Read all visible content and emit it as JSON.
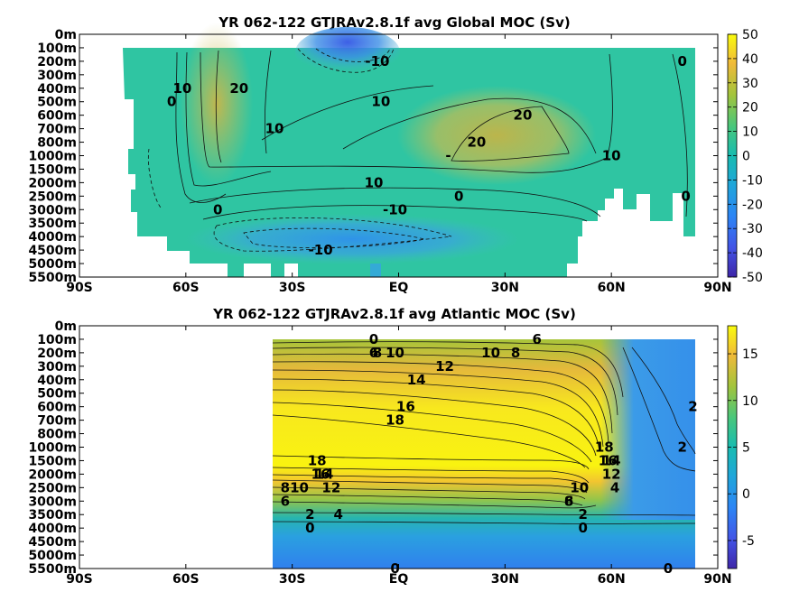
{
  "chart_data": [
    {
      "type": "heatmap",
      "title": "YR 062-122 GTJRAv2.8.1f avg  Global MOC (Sv)",
      "x_ticks": [
        "90S",
        "60S",
        "30S",
        "EQ",
        "30N",
        "60N",
        "90N"
      ],
      "x_range": [
        -90,
        90
      ],
      "y_ticks": [
        "0m",
        "100m",
        "200m",
        "300m",
        "400m",
        "500m",
        "600m",
        "700m",
        "800m",
        "1000m",
        "1500m",
        "2000m",
        "2500m",
        "3000m",
        "3500m",
        "4000m",
        "4500m",
        "5000m",
        "5500m"
      ],
      "colorbar": {
        "min": -50,
        "max": 50,
        "ticks": [
          "50",
          "40",
          "30",
          "20",
          "10",
          "0",
          "-10",
          "-20",
          "-30",
          "-40",
          "-50"
        ]
      },
      "contour_labels": [
        {
          "text": "-10",
          "lat": -6,
          "depth": "200m"
        },
        {
          "text": "0",
          "lat": 80,
          "depth": "200m"
        },
        {
          "text": "0",
          "lat": -64,
          "depth": "500m"
        },
        {
          "text": "10",
          "lat": -61,
          "depth": "400m"
        },
        {
          "text": "20",
          "lat": -45,
          "depth": "400m"
        },
        {
          "text": "10",
          "lat": -35,
          "depth": "700m"
        },
        {
          "text": "10",
          "lat": -5,
          "depth": "500m"
        },
        {
          "text": "20",
          "lat": 35,
          "depth": "600m"
        },
        {
          "text": "20",
          "lat": 22,
          "depth": "800m"
        },
        {
          "text": "-",
          "lat": 14,
          "depth": "1000m"
        },
        {
          "text": "10",
          "lat": 60,
          "depth": "1000m"
        },
        {
          "text": "10",
          "lat": -7,
          "depth": "2000m"
        },
        {
          "text": "0",
          "lat": 17,
          "depth": "2500m"
        },
        {
          "text": "0",
          "lat": -51,
          "depth": "3000m"
        },
        {
          "text": "-10",
          "lat": -1,
          "depth": "3000m"
        },
        {
          "text": "0",
          "lat": 81,
          "depth": "2500m"
        },
        {
          "text": "-10",
          "lat": -22,
          "depth": "4500m"
        }
      ]
    },
    {
      "type": "heatmap",
      "title": "YR 062-122 GTJRAv2.8.1f avg  Atlantic MOC (Sv)",
      "x_ticks": [
        "90S",
        "60S",
        "30S",
        "EQ",
        "30N",
        "60N",
        "90N"
      ],
      "x_range": [
        -90,
        90
      ],
      "data_lat_range": [
        -35,
        87
      ],
      "y_ticks": [
        "0m",
        "100m",
        "200m",
        "300m",
        "400m",
        "500m",
        "600m",
        "700m",
        "800m",
        "1000m",
        "1500m",
        "2000m",
        "2500m",
        "3000m",
        "3500m",
        "4000m",
        "4500m",
        "5000m",
        "5500m"
      ],
      "colorbar": {
        "min": -8,
        "max": 18,
        "ticks": [
          "15",
          "10",
          "5",
          "0",
          "-5"
        ]
      },
      "contour_labels": [
        {
          "text": "0",
          "lat": -7,
          "depth": "100m"
        },
        {
          "text": "6",
          "lat": -7,
          "depth": "200m"
        },
        {
          "text": "8",
          "lat": -6,
          "depth": "200m"
        },
        {
          "text": "10",
          "lat": -1,
          "depth": "200m"
        },
        {
          "text": "12",
          "lat": 13,
          "depth": "300m"
        },
        {
          "text": "10",
          "lat": 26,
          "depth": "200m"
        },
        {
          "text": "8",
          "lat": 33,
          "depth": "200m"
        },
        {
          "text": "6",
          "lat": 39,
          "depth": "100m"
        },
        {
          "text": "14",
          "lat": 5,
          "depth": "400m"
        },
        {
          "text": "16",
          "lat": 2,
          "depth": "600m"
        },
        {
          "text": "18",
          "lat": -1,
          "depth": "700m"
        },
        {
          "text": "2",
          "lat": 83,
          "depth": "600m"
        },
        {
          "text": "18",
          "lat": 58,
          "depth": "1000m"
        },
        {
          "text": "2",
          "lat": 80,
          "depth": "1000m"
        },
        {
          "text": "18",
          "lat": -23,
          "depth": "1500m"
        },
        {
          "text": "16",
          "lat": -22,
          "depth": "2000m"
        },
        {
          "text": "14",
          "lat": -21,
          "depth": "2000m"
        },
        {
          "text": "12",
          "lat": -19,
          "depth": "2500m"
        },
        {
          "text": "10",
          "lat": -28,
          "depth": "2500m"
        },
        {
          "text": "8",
          "lat": -32,
          "depth": "2500m"
        },
        {
          "text": "6",
          "lat": -32,
          "depth": "3000m"
        },
        {
          "text": "16",
          "lat": 59,
          "depth": "1500m"
        },
        {
          "text": "14",
          "lat": 60,
          "depth": "1500m"
        },
        {
          "text": "12",
          "lat": 60,
          "depth": "2000m"
        },
        {
          "text": "10",
          "lat": 51,
          "depth": "2500m"
        },
        {
          "text": "8",
          "lat": 48,
          "depth": "3000m"
        },
        {
          "text": "6",
          "lat": 48,
          "depth": "3000m"
        },
        {
          "text": "4",
          "lat": 61,
          "depth": "2500m"
        },
        {
          "text": "4",
          "lat": -17,
          "depth": "3500m"
        },
        {
          "text": "2",
          "lat": -25,
          "depth": "3500m"
        },
        {
          "text": "0",
          "lat": -25,
          "depth": "4000m"
        },
        {
          "text": "2",
          "lat": 52,
          "depth": "3500m"
        },
        {
          "text": "0",
          "lat": 52,
          "depth": "4000m"
        },
        {
          "text": "0",
          "lat": -1,
          "depth": "5500m"
        },
        {
          "text": "0",
          "lat": 76,
          "depth": "5500m"
        }
      ]
    }
  ]
}
